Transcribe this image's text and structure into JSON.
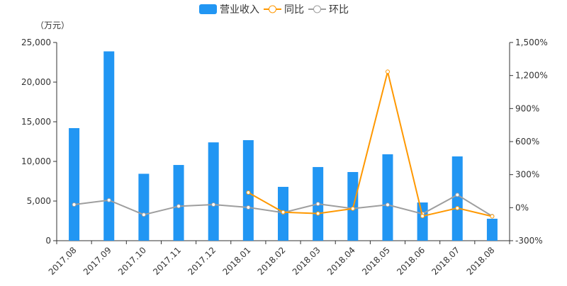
{
  "chart_data": {
    "type": "bar",
    "unit_label": "（万元）",
    "categories": [
      "2017.08",
      "2017.09",
      "2017.10",
      "2017.11",
      "2017.12",
      "2018.01",
      "2018.02",
      "2018.03",
      "2018.04",
      "2018.05",
      "2018.06",
      "2018.07",
      "2018.08"
    ],
    "left_axis": {
      "min": 0,
      "max": 25000,
      "ticks": [
        "0",
        "5,000",
        "10,000",
        "15,000",
        "20,000",
        "25,000"
      ]
    },
    "right_axis": {
      "min": -300,
      "max": 1500,
      "ticks": [
        "-300%",
        "0%",
        "300%",
        "600%",
        "900%",
        "1,200%",
        "1,500%"
      ]
    },
    "series": [
      {
        "name": "营业收入",
        "type": "bar",
        "axis": "left",
        "color": "#2196f3",
        "values": [
          14200,
          23880,
          8440,
          9550,
          12400,
          12680,
          6790,
          9290,
          8660,
          10900,
          4820,
          10630,
          2770
        ]
      },
      {
        "name": "同比",
        "type": "line",
        "axis": "right",
        "color": "#ff9800",
        "values": [
          null,
          null,
          null,
          null,
          null,
          137,
          -41,
          -53,
          -9,
          1235,
          -77,
          -4,
          -79
        ]
      },
      {
        "name": "环比",
        "type": "line",
        "axis": "right",
        "color": "#9e9e9e",
        "values": [
          28,
          68,
          -64,
          13,
          28,
          2,
          -45,
          34,
          -8,
          26,
          -56,
          116,
          -77
        ]
      }
    ],
    "legend": "top-center"
  }
}
